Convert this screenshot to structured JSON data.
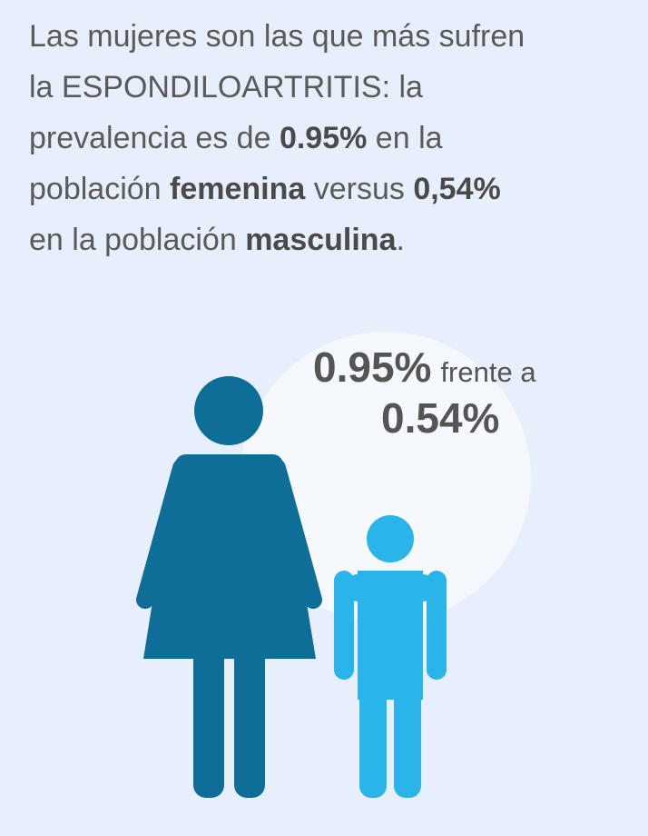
{
  "intro": {
    "lines": [
      [
        {
          "text": "Las mujeres son las que más sufren",
          "bold": false
        }
      ],
      [
        {
          "text": "la ESPONDILOARTRITIS: la",
          "bold": false
        }
      ],
      [
        {
          "text": "prevalencia es de ",
          "bold": false
        },
        {
          "text": "0.95%",
          "bold": true
        },
        {
          "text": " en la",
          "bold": false
        }
      ],
      [
        {
          "text": "población ",
          "bold": false
        },
        {
          "text": "femenina",
          "bold": true
        },
        {
          "text": " versus ",
          "bold": false
        },
        {
          "text": "0,54%",
          "bold": true
        }
      ],
      [
        {
          "text": "en la población ",
          "bold": false
        },
        {
          "text": "masculina",
          "bold": true
        },
        {
          "text": ".",
          "bold": false
        }
      ]
    ]
  },
  "stat": {
    "value_a": "0.95%",
    "connector": "frente a",
    "value_b": "0.54%"
  }
}
